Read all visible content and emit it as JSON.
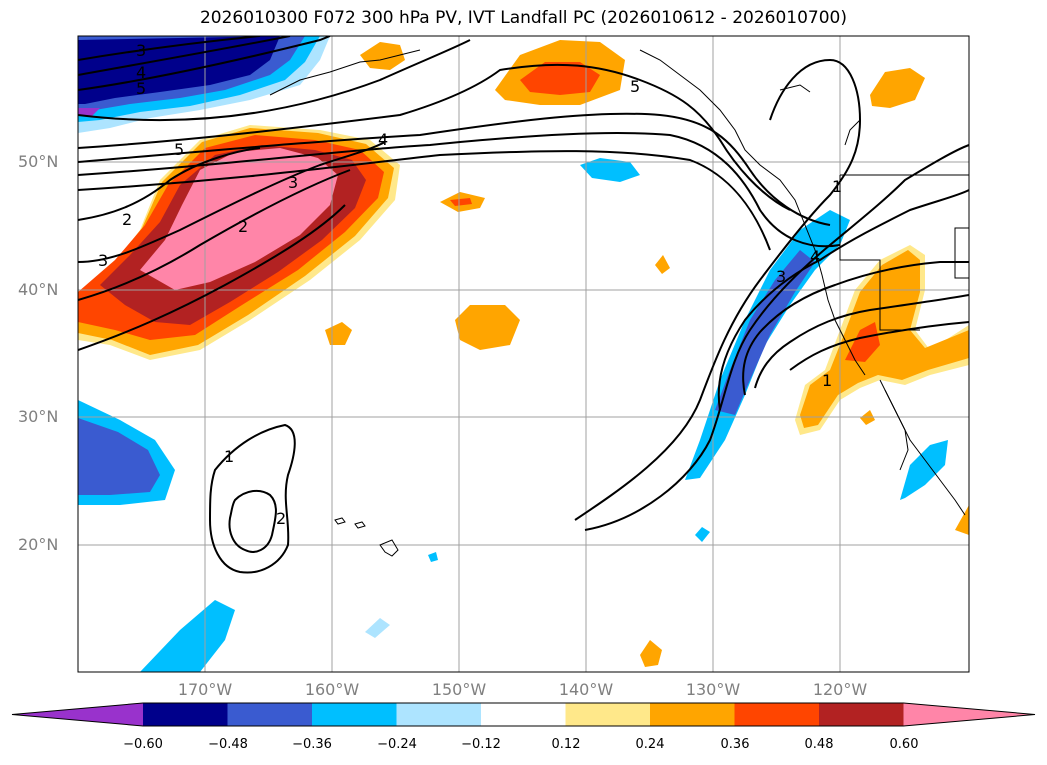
{
  "title": "2026010300 F072 300 hPa PV, IVT Landfall PC (2026010612 - 2026010700)",
  "lat_labels": [
    "50°N",
    "40°N",
    "30°N",
    "20°N"
  ],
  "lon_labels": [
    "170°W",
    "160°W",
    "150°W",
    "140°W",
    "130°W",
    "120°W"
  ],
  "colorbar": {
    "ticks": [
      "−0.60",
      "−0.48",
      "−0.36",
      "−0.24",
      "−0.12",
      "0.12",
      "0.24",
      "0.36",
      "0.48",
      "0.60"
    ],
    "colors": [
      "#9932cc",
      "#00008b",
      "#3a5bd0",
      "#00bfff",
      "#ade4ff",
      "#ffffff",
      "#ffe88a",
      "#ffa500",
      "#ff4500",
      "#b22222",
      "#ff85a8"
    ]
  },
  "contour_labels": {
    "c3_top": "3",
    "c4_top": "4",
    "c5_top": "5",
    "c5_left": "5",
    "c3_mid": "3",
    "c2_mid": "2",
    "c4_mid": "4",
    "c2_left": "2",
    "c3_left": "3",
    "c5_nw": "5",
    "c1_coast": "1",
    "c3_coast": "3",
    "c4_coast": "4",
    "c1_baja": "1",
    "c1_sw": "1",
    "c2_sw": "2"
  }
}
